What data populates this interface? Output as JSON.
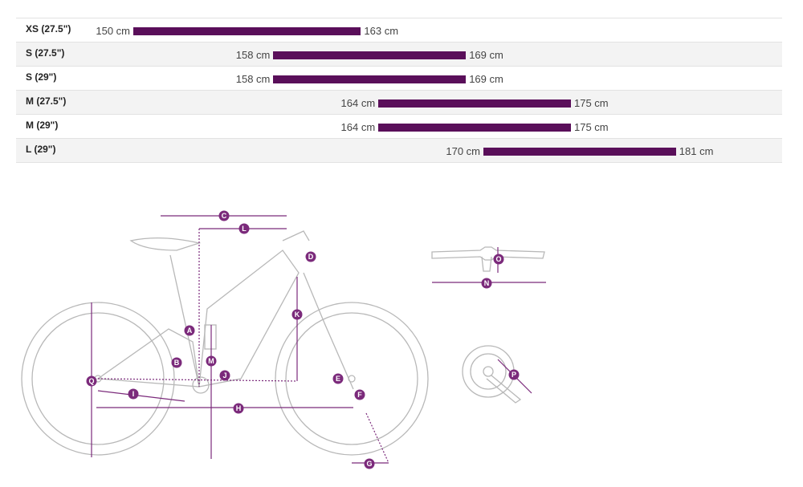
{
  "size_table": {
    "rows": [
      {
        "label": "XS (27.5\")",
        "min": "150 cm",
        "max": "163 cm",
        "min_cm": 150,
        "max_cm": 163
      },
      {
        "label": "S (27.5\")",
        "min": "158 cm",
        "max": "169 cm",
        "min_cm": 158,
        "max_cm": 169
      },
      {
        "label": "S (29\")",
        "min": "158 cm",
        "max": "169 cm",
        "min_cm": 158,
        "max_cm": 169
      },
      {
        "label": "M (27.5\")",
        "min": "164 cm",
        "max": "175 cm",
        "min_cm": 164,
        "max_cm": 175
      },
      {
        "label": "M (29\")",
        "min": "164 cm",
        "max": "175 cm",
        "min_cm": 164,
        "max_cm": 175
      },
      {
        "label": "L (29\")",
        "min": "170 cm",
        "max": "181 cm",
        "min_cm": 170,
        "max_cm": 181
      }
    ]
  },
  "geometry_labels": [
    "A",
    "B",
    "C",
    "D",
    "E",
    "F",
    "G",
    "H",
    "I",
    "J",
    "K",
    "L",
    "M",
    "N",
    "O",
    "P",
    "Q"
  ],
  "colors": {
    "bar": "#5a0f5a",
    "accent": "#7b2a7b",
    "outline": "#b8b8b8"
  }
}
